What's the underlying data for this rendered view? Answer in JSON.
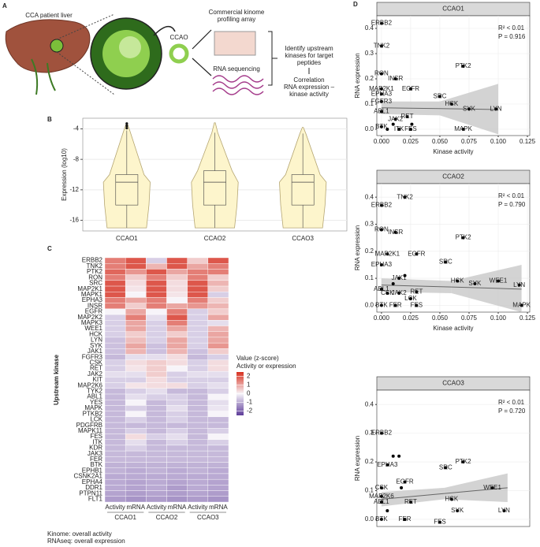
{
  "panel_labels": [
    "A",
    "B",
    "C",
    "D"
  ],
  "panel_a": {
    "liver": "CCA patient liver",
    "organoid": "CCAO",
    "array": [
      "Commercial kinome",
      "profiling array"
    ],
    "rnaseq": "RNA sequencing",
    "identify": [
      "Identify upstream",
      "kinases for target",
      "peptides"
    ],
    "correlation": [
      "Correlation",
      "RNA expression –",
      "kinase activity"
    ]
  },
  "footnotes": [
    "Kinome: overall activity",
    "RNAseq: overall expression"
  ],
  "chart_data": [
    {
      "type": "violin",
      "ylabel": "Expression (log10)",
      "categories": [
        "CCAO1",
        "CCAO2",
        "CCAO3"
      ],
      "stats": [
        {
          "min": -17,
          "whisker_low": -17,
          "q1": -14,
          "median": -11,
          "q3": -10,
          "whisker_high": -4.2,
          "max": -3.3,
          "outliers": [
            -3.3,
            -3.6,
            -3.9
          ]
        },
        {
          "min": -17,
          "whisker_low": -17,
          "q1": -14,
          "median": -11,
          "q3": -9.5,
          "whisker_high": -4.5,
          "max": -3.2,
          "outliers": []
        },
        {
          "min": -17,
          "whisker_low": -17,
          "q1": -14,
          "median": -11,
          "q3": -10,
          "whisker_high": -4.6,
          "max": -3.8,
          "outliers": []
        }
      ],
      "color": "#fdf5cc",
      "edge_color": "#b5a672",
      "ylim": [
        -17.4,
        -2.6
      ],
      "yticks": [
        -4,
        -8,
        -12,
        -16
      ],
      "grid": true
    },
    {
      "type": "heatmap",
      "ylabel": "Upstream kinase",
      "rows": [
        "ERBB2",
        "TNK2",
        "PTK2",
        "RON",
        "SRC",
        "MAP2K1",
        "MAPK1",
        "EPHA3",
        "INSR",
        "EGFR",
        "MAP2K2",
        "MAPK3",
        "WEE1",
        "HCK",
        "LYN",
        "SYK",
        "JAK1",
        "FGFR3",
        "CSK",
        "RET",
        "JAK2",
        "KIT",
        "MAP2K6",
        "TYK2",
        "ABL1",
        "YES",
        "MAPK",
        "PTKB2",
        "LCK",
        "PDGFRB",
        "MAPK11",
        "FES",
        "ITK",
        "KDR",
        "JAK3",
        "FER",
        "BTK",
        "EPHB1",
        "CSNK2A1",
        "EPHA4",
        "DDR1",
        "PTPN11",
        "FLT1"
      ],
      "columns": [
        "Activity",
        "mRNA",
        "Activity",
        "mRNA",
        "Activity",
        "mRNA"
      ],
      "groups": [
        "CCAO1",
        "CCAO2",
        "CCAO3"
      ],
      "values": [
        [
          1.5,
          2,
          -0.5,
          2,
          0.5,
          2
        ],
        [
          1.5,
          2,
          0.8,
          2,
          1,
          1.5
        ],
        [
          1.8,
          1.2,
          2,
          1,
          1.5,
          1.5
        ],
        [
          1.5,
          0.5,
          1.5,
          0.5,
          1.5,
          0.5
        ],
        [
          2,
          0.3,
          2,
          0.3,
          2,
          0.8
        ],
        [
          2,
          0.2,
          2,
          0.3,
          2,
          0.5
        ],
        [
          2,
          0,
          2,
          0.2,
          2,
          -0.5
        ],
        [
          1.5,
          1,
          1.5,
          0,
          1.5,
          0.5
        ],
        [
          1.5,
          0.5,
          1.5,
          1,
          1.2,
          0.8
        ],
        [
          0,
          1,
          0,
          1.5,
          -0.5,
          0.5
        ],
        [
          -0.5,
          1.5,
          -0.3,
          2,
          -0.5,
          1
        ],
        [
          -0.5,
          1,
          -0.5,
          1.5,
          -0.5,
          -0.3
        ],
        [
          -0.5,
          1,
          -0.5,
          1,
          -0.5,
          0.8
        ],
        [
          -0.5,
          0.5,
          -0.5,
          0.5,
          -0.5,
          1
        ],
        [
          -0.7,
          0.7,
          -0.5,
          1,
          -0.5,
          1
        ],
        [
          -0.7,
          1,
          -0.7,
          1,
          -0.5,
          1.2
        ],
        [
          -0.7,
          0.8,
          -0.7,
          0.8,
          -0.7,
          0.5
        ],
        [
          -0.8,
          -0.3,
          -0.3,
          0.3,
          -0.8,
          -0.5
        ],
        [
          -0.5,
          0.3,
          0.5,
          0.3,
          -0.5,
          0.3
        ],
        [
          -0.5,
          0.2,
          0.5,
          0,
          -0.5,
          0.3
        ],
        [
          -0.3,
          -0.3,
          0.5,
          -0.5,
          -0.3,
          -0.3
        ],
        [
          -0.5,
          -0.5,
          0.3,
          -0.5,
          -0.5,
          -0.5
        ],
        [
          -0.5,
          0.2,
          0.3,
          0.3,
          -0.5,
          -0.3
        ],
        [
          -0.8,
          -0.5,
          -0.3,
          -0.8,
          -0.8,
          -0.5
        ],
        [
          -0.8,
          -0.3,
          -0.5,
          -0.5,
          -0.8,
          0
        ],
        [
          -0.8,
          0,
          -0.8,
          -0.5,
          -0.8,
          -0.3
        ],
        [
          -0.8,
          -0.5,
          -0.8,
          -0.3,
          -0.8,
          -0.2
        ],
        [
          -0.8,
          0,
          -0.8,
          -0.5,
          -0.8,
          0
        ],
        [
          -0.8,
          -0.5,
          -0.8,
          -0.5,
          -0.8,
          -0.8
        ],
        [
          -0.8,
          -0.8,
          -0.8,
          -0.8,
          -0.8,
          -0.8
        ],
        [
          -0.8,
          -0.5,
          -0.8,
          -0.5,
          -0.8,
          -0.5
        ],
        [
          -0.8,
          0.3,
          -0.5,
          -0.3,
          -0.8,
          0
        ],
        [
          -0.8,
          -0.3,
          -0.8,
          -0.5,
          -0.8,
          -0.5
        ],
        [
          -0.8,
          -0.5,
          -0.8,
          -0.8,
          -0.8,
          -0.8
        ],
        [
          -0.8,
          -0.8,
          -0.8,
          -0.8,
          -0.8,
          -0.8
        ],
        [
          -0.8,
          -0.8,
          -0.8,
          -0.8,
          -0.8,
          -0.8
        ],
        [
          -0.9,
          -0.9,
          -0.9,
          -0.9,
          -0.9,
          -0.9
        ],
        [
          -0.9,
          -1,
          -0.9,
          -1,
          -0.9,
          -1
        ],
        [
          -1,
          -1,
          -1,
          -1,
          -1,
          -1
        ],
        [
          -1,
          -1.1,
          -1,
          -1.1,
          -1,
          -1.1
        ],
        [
          -1,
          -1.1,
          -1,
          -1.2,
          -1,
          -1.1
        ],
        [
          -1.1,
          -1.2,
          -1.1,
          -1.2,
          -1.1,
          -1.2
        ],
        [
          -1.2,
          -1.3,
          -1.2,
          -1.3,
          -1.2,
          -1.3
        ]
      ],
      "colorbar": {
        "title": "Value (z-score)",
        "subtitle": "Activity or expression",
        "ticks": [
          2,
          1,
          0,
          -1,
          -2
        ],
        "range": [
          -2.5,
          2.5
        ],
        "colors": [
          "#5e3c99",
          "#f7f4f9",
          "#d7301f"
        ]
      }
    },
    {
      "type": "scatter",
      "title": "CCAO1",
      "xlabel": "Kinase activity",
      "ylabel": "RNA expression",
      "x": [
        0,
        0,
        0.07,
        0,
        0.012,
        0.025,
        0,
        0,
        0.05,
        0,
        0.06,
        0.098,
        0.075,
        0,
        0.012,
        0.022,
        0,
        0.015,
        0.025,
        0.07,
        0.005,
        0.01,
        0.026
      ],
      "y": [
        0.42,
        0.33,
        0.25,
        0.22,
        0.2,
        0.16,
        0.16,
        0.14,
        0.13,
        0.11,
        0.1,
        0.08,
        0.08,
        0.07,
        0.04,
        0.05,
        0.01,
        0,
        0,
        0,
        0,
        0.02,
        0.02
      ],
      "labels": [
        "ERBB2",
        "TNK2",
        "PTK2",
        "RON",
        "INSR",
        "EGFR",
        "MAP2K1",
        "EPHA3",
        "SRC",
        "FGFR3",
        "HCK",
        "LYN",
        "SYK",
        "ABL1",
        "JAK2",
        "RET",
        "BTK",
        "ITK",
        "FES",
        "MAPK",
        null,
        null,
        null
      ],
      "fit": {
        "x": [
          0,
          0.05,
          0.1
        ],
        "y": [
          0.085,
          0.082,
          0.078
        ],
        "lower": [
          0.06,
          0.055,
          -0.02
        ],
        "upper": [
          0.11,
          0.11,
          0.18
        ]
      },
      "annotations": [
        "R² < 0.01",
        "P = 0.916"
      ],
      "color": "#000000",
      "fit_color": "#666666",
      "band_color": "#c8c8c8",
      "xlim": [
        -0.004,
        0.127
      ],
      "ylim": [
        -0.025,
        0.45
      ],
      "xticks": [
        {
          "value": 0,
          "label": "0.000"
        },
        0.025,
        {
          "value": 0.05,
          "label": "0.050"
        },
        0.075,
        {
          "value": 0.1,
          "label": "0.100"
        },
        0.125
      ],
      "yticks": [
        {
          "value": 0,
          "label": "0.0"
        },
        0.1,
        0.2,
        0.3,
        0.4
      ],
      "grid": true
    },
    {
      "type": "scatter",
      "title": "CCAO2",
      "xlabel": "Kinase activity",
      "ylabel": "RNA expression",
      "x": [
        0.02,
        0,
        0,
        0.012,
        0.07,
        0.005,
        0.03,
        0.055,
        0,
        0.015,
        0.065,
        0.1,
        0.08,
        0.118,
        0,
        0.005,
        0.015,
        0.03,
        0.025,
        0,
        0.012,
        0.03,
        0.12,
        0.02,
        0.01
      ],
      "y": [
        0.4,
        0.37,
        0.28,
        0.27,
        0.25,
        0.19,
        0.19,
        0.16,
        0.15,
        0.1,
        0.09,
        0.09,
        0.08,
        0.075,
        0.06,
        0.045,
        0.045,
        0.05,
        0.025,
        0,
        0,
        0,
        0,
        0.11,
        0.08
      ],
      "labels": [
        "TNK2",
        "ERBB2",
        "RON",
        "INSR",
        "PTK2",
        "MAP2K1",
        "EGFR",
        "SRC",
        "EPHA3",
        "JAK1",
        "HCK",
        "WEE1",
        "SYK",
        "LYN",
        "ABL1",
        "CSK",
        "JAK2",
        "RET",
        "LCK",
        "BTK",
        "FER",
        "FES",
        "MAPK",
        null,
        null
      ],
      "fit": {
        "x": [
          0,
          0.06,
          0.12
        ],
        "y": [
          0.075,
          0.068,
          0.06
        ],
        "lower": [
          0.05,
          0.045,
          -0.03
        ],
        "upper": [
          0.1,
          0.09,
          0.15
        ]
      },
      "annotations": [
        "R² < 0.01",
        "P = 0.790"
      ],
      "color": "#000000",
      "fit_color": "#666666",
      "band_color": "#c8c8c8",
      "xlim": [
        -0.004,
        0.127
      ],
      "ylim": [
        -0.025,
        0.45
      ],
      "xticks": [
        {
          "value": 0,
          "label": "0.000"
        },
        0.025,
        {
          "value": 0.05,
          "label": "0.050"
        },
        0.075,
        {
          "value": 0.1,
          "label": "0.100"
        },
        0.125
      ],
      "yticks": [
        {
          "value": 0,
          "label": "0.0"
        },
        0.1,
        0.2,
        0.3,
        0.4
      ],
      "grid": true
    },
    {
      "type": "scatter",
      "title": "CCAO3",
      "ylabel": "RNA expression",
      "x": [
        0,
        0.005,
        0.07,
        0.055,
        0.02,
        0,
        0.095,
        0,
        0.06,
        0,
        0.025,
        0.065,
        0.105,
        0,
        0.02,
        0.05,
        0.01,
        0.015,
        0.005,
        0.017
      ],
      "y": [
        0.3,
        0.19,
        0.2,
        0.18,
        0.13,
        0.11,
        0.11,
        0.08,
        0.07,
        0.06,
        0.06,
        0.03,
        0.03,
        0,
        0,
        -0.01,
        0.22,
        0.22,
        0.03,
        0.11
      ],
      "labels": [
        "ERBB2",
        "EPHA3",
        "PTK2",
        "SRC",
        "EGFR",
        "CSK",
        "WEE1",
        "MAP2K6",
        "HCK",
        "ABL1",
        "RET",
        "SYK",
        "LYN",
        "BTK",
        "FER",
        "FES",
        null,
        null,
        null,
        null
      ],
      "fit": {
        "x": [
          0,
          0.054,
          0.108
        ],
        "y": [
          0.07,
          0.09,
          0.11
        ],
        "lower": [
          0.045,
          0.07,
          0.06
        ],
        "upper": [
          0.095,
          0.11,
          0.16
        ]
      },
      "annotations": [
        "R² < 0.01",
        "P = 0.720"
      ],
      "color": "#000000",
      "fit_color": "#666666",
      "band_color": "#c8c8c8",
      "xlim": [
        -0.004,
        0.127
      ],
      "ylim": [
        -0.025,
        0.45
      ],
      "yticks": [
        {
          "value": 0,
          "label": "0.0"
        },
        0.1,
        0.2,
        0.3,
        0.4
      ],
      "grid": true
    }
  ]
}
